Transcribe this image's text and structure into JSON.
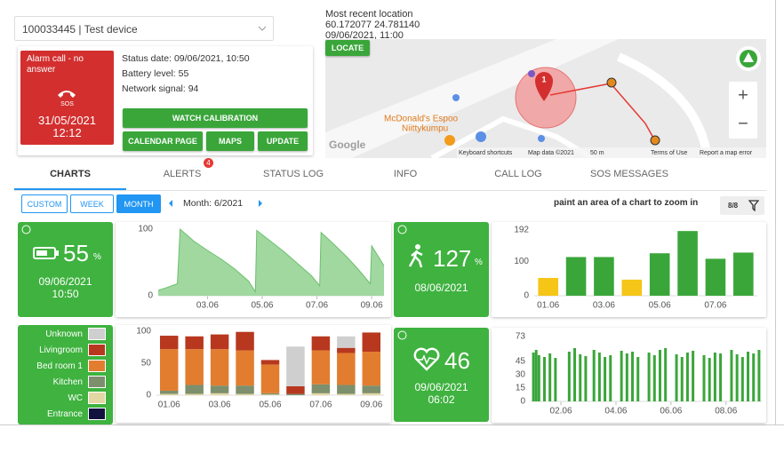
{
  "device_select": "100033445 | Test device",
  "alarm": {
    "title": "Alarm call - no answer",
    "label": "SOS",
    "date": "31/05/2021",
    "time": "12:12"
  },
  "status": {
    "date": "Status date: 09/06/2021, 10:50",
    "battery": "Battery level: 55",
    "signal": "Network signal: 94"
  },
  "actions": [
    "WATCH CALIBRATION",
    "CALENDAR PAGE",
    "MAPS",
    "UPDATE"
  ],
  "location": {
    "title": "Most recent location",
    "coordinates": "60.172077 24.781140",
    "time": "09/06/2021, 11:00",
    "button": "LOCATE"
  },
  "map": {
    "place": "McDonald's Espoo",
    "place_sub": "Niittykumpu",
    "marker": "1",
    "logo": "Google",
    "shortcuts": "Keyboard shortcuts",
    "map_data": "Map data ©2021",
    "scale": "50 m",
    "terms": "Terms of Use",
    "report": "Report a map error",
    "zoom_in": "+",
    "zoom_out": "−"
  },
  "tabs": [
    "CHARTS",
    "ALERTS",
    "STATUS LOG",
    "INFO",
    "CALL LOG",
    "SOS MESSAGES"
  ],
  "alerts_badge": "4",
  "periods": [
    "CUSTOM",
    "WEEK",
    "MONTH"
  ],
  "month": "Month: 6/2021",
  "hint": "paint an area of a chart to zoom in",
  "filter": "8/8",
  "tiles": {
    "battery": {
      "value": "55",
      "unit": "%",
      "date": "09/06/2021",
      "time": "10:50"
    },
    "steps": {
      "value": "127",
      "unit": "%",
      "date": "08/06/2021"
    },
    "heart": {
      "value": "46",
      "date": "09/06/2021",
      "time": "06:02"
    }
  },
  "chart_data": [
    {
      "type": "area",
      "color": "#8fd18f",
      "x": [
        1.2,
        1.5,
        1.9,
        2.0,
        2.5,
        3.0,
        3.5,
        4.0,
        4.5,
        4.75,
        4.8,
        5.3,
        5.8,
        6.3,
        6.8,
        7.1,
        7.15,
        7.6,
        8.1,
        8.5,
        8.95,
        9.0,
        9.45
      ],
      "values": [
        8,
        12,
        18,
        100,
        82,
        68,
        55,
        40,
        22,
        6,
        98,
        82,
        66,
        48,
        30,
        15,
        95,
        78,
        58,
        40,
        18,
        75,
        45
      ],
      "xlim": [
        1.2,
        9.45
      ],
      "xticks": [
        {
          "value": 3,
          "label": "03.06"
        },
        {
          "value": 5,
          "label": "05.06"
        },
        {
          "value": 7,
          "label": "07.06"
        },
        {
          "value": 9,
          "label": "09.06"
        }
      ],
      "ylim": [
        0,
        100
      ],
      "yticks": [
        0,
        100
      ]
    },
    {
      "type": "bar",
      "categories": [
        "01.06",
        null,
        "03.06",
        null,
        "05.06",
        null,
        "07.06",
        null
      ],
      "values": [
        52,
        113,
        113,
        47,
        124,
        189,
        108,
        126
      ],
      "colors": [
        "#f5c518",
        "#3aa63a",
        "#3aa63a",
        "#f5c518",
        "#3aa63a",
        "#3aa63a",
        "#3aa63a",
        "#3aa63a"
      ],
      "ylim": [
        0,
        192
      ],
      "yticks": [
        0,
        100,
        192
      ]
    },
    {
      "type": "stacked_bar",
      "categories": [
        "01.06",
        null,
        "03.06",
        null,
        "05.06",
        null,
        "07.06",
        null,
        "09.06"
      ],
      "series": [
        {
          "name": "Entrance",
          "color": "#12123f",
          "values": [
            0,
            0,
            0,
            0,
            0,
            0,
            0,
            0,
            0
          ]
        },
        {
          "name": "WC",
          "color": "#e3d7a3",
          "values": [
            2,
            2,
            3,
            2,
            1,
            0,
            3,
            2,
            3
          ]
        },
        {
          "name": "Kitchen",
          "color": "#7d8f6c",
          "values": [
            5,
            14,
            12,
            13,
            2,
            2,
            14,
            14,
            12
          ]
        },
        {
          "name": "Bed room 1",
          "color": "#e27d2f",
          "values": [
            65,
            56,
            57,
            55,
            45,
            0,
            53,
            50,
            53
          ]
        },
        {
          "name": "Livingroom",
          "color": "#b7381f",
          "values": [
            21,
            20,
            23,
            29,
            7,
            12,
            22,
            8,
            30
          ]
        },
        {
          "name": "Unknown",
          "color": "#cfcfcf",
          "values": [
            0,
            0,
            0,
            0,
            0,
            62,
            0,
            18,
            0
          ]
        }
      ],
      "ylim": [
        0,
        100
      ],
      "yticks": [
        0,
        50,
        100
      ]
    },
    {
      "type": "bar",
      "color": "#3aa63a",
      "x": [
        1.0,
        1.1,
        1.2,
        1.4,
        1.6,
        1.8,
        2.3,
        2.5,
        2.7,
        2.9,
        3.2,
        3.4,
        3.6,
        3.8,
        4.2,
        4.4,
        4.6,
        4.8,
        5.2,
        5.4,
        5.6,
        5.8,
        6.2,
        6.4,
        6.6,
        6.8,
        7.2,
        7.4,
        7.6,
        7.8,
        8.2,
        8.4,
        8.6,
        8.8,
        9.0,
        9.2
      ],
      "values": [
        55,
        58,
        52,
        50,
        54,
        49,
        56,
        60,
        53,
        51,
        58,
        55,
        50,
        52,
        57,
        54,
        56,
        50,
        55,
        52,
        58,
        60,
        53,
        50,
        55,
        57,
        52,
        49,
        55,
        54,
        58,
        53,
        50,
        56,
        54,
        58
      ],
      "xlim": [
        0.9,
        9.3
      ],
      "xticks": [
        {
          "value": 2,
          "label": "02.06"
        },
        {
          "value": 4,
          "label": "04.06"
        },
        {
          "value": 6,
          "label": "06.06"
        },
        {
          "value": 8,
          "label": "08.06"
        }
      ],
      "ylim": [
        0,
        73
      ],
      "yticks": [
        0,
        15,
        30,
        45,
        73
      ]
    }
  ]
}
